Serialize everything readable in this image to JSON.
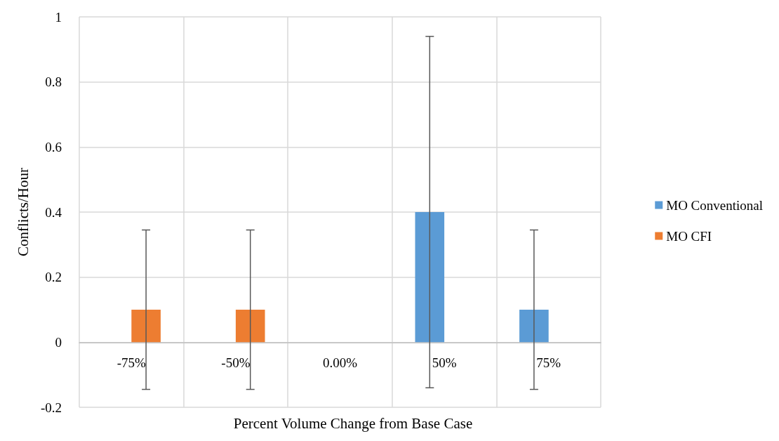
{
  "chart_data": {
    "type": "bar",
    "xlabel": "Percent Volume Change from Base Case",
    "ylabel": "Conflicts/Hour",
    "categories": [
      "-75%",
      "-50%",
      "0.00%",
      "50%",
      "75%"
    ],
    "series": [
      {
        "name": "MO Conventional",
        "color": "#5b9bd5",
        "values": [
          0,
          0,
          0,
          0.4,
          0.1
        ],
        "errors": [
          null,
          null,
          null,
          0.54,
          0.245
        ]
      },
      {
        "name": "MO CFI",
        "color": "#ed7d31",
        "values": [
          0.1,
          0.1,
          0,
          0,
          0
        ],
        "errors": [
          0.245,
          0.245,
          null,
          null,
          null
        ]
      }
    ],
    "ylim": [
      -0.2,
      1
    ],
    "yticks": [
      -0.2,
      0,
      0.2,
      0.4,
      0.6,
      0.8,
      1
    ],
    "grid": true,
    "legend": "right"
  }
}
